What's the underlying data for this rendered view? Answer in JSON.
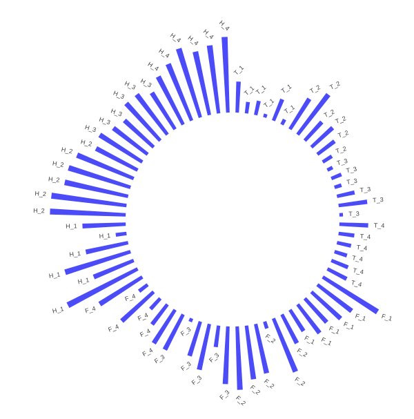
{
  "chart_data": {
    "type": "circular-bar",
    "color": "#4b4bf7",
    "ylim": [
      0,
      110
    ],
    "categories": [
      "T_1",
      "T_1",
      "T_1",
      "T_1",
      "T_1",
      "T_1",
      "T_2",
      "T_2",
      "T_2",
      "T_2",
      "T_2",
      "T_2",
      "T_3",
      "T_3",
      "T_3",
      "T_3",
      "T_3",
      "T_3",
      "T_4",
      "T_4",
      "T_4",
      "T_4",
      "T_4",
      "T_4",
      "F_1",
      "F_1",
      "F_1",
      "F_1",
      "F_1",
      "F_1",
      "F_2",
      "F_2",
      "F_2",
      "F_2",
      "F_2",
      "F_2",
      "F_3",
      "F_3",
      "F_3",
      "F_3",
      "F_3",
      "F_3",
      "F_4",
      "F_4",
      "F_4",
      "F_4",
      "F_4",
      "F_4",
      "H_1",
      "H_1",
      "H_1",
      "H_1",
      "H_1",
      "H_1",
      "H_2",
      "H_2",
      "H_2",
      "H_2",
      "H_2",
      "H_2",
      "H_3",
      "H_3",
      "H_3",
      "H_3",
      "H_3",
      "H_3",
      "H_4",
      "H_4",
      "H_4",
      "H_4",
      "H_4",
      "H_4"
    ],
    "values": [
      43,
      16,
      20,
      5,
      32,
      8,
      50,
      70,
      35,
      40,
      30,
      15,
      8,
      15,
      10,
      25,
      40,
      5,
      40,
      22,
      20,
      18,
      25,
      30,
      90,
      60,
      55,
      45,
      50,
      35,
      45,
      80,
      10,
      70,
      75,
      88,
      80,
      30,
      65,
      50,
      5,
      55,
      55,
      35,
      20,
      60,
      15,
      70,
      109,
      60,
      95,
      60,
      15,
      60,
      105,
      105,
      90,
      90,
      85,
      65,
      70,
      60,
      55,
      70,
      70,
      60,
      75,
      85,
      100,
      90,
      95,
      105
    ]
  }
}
